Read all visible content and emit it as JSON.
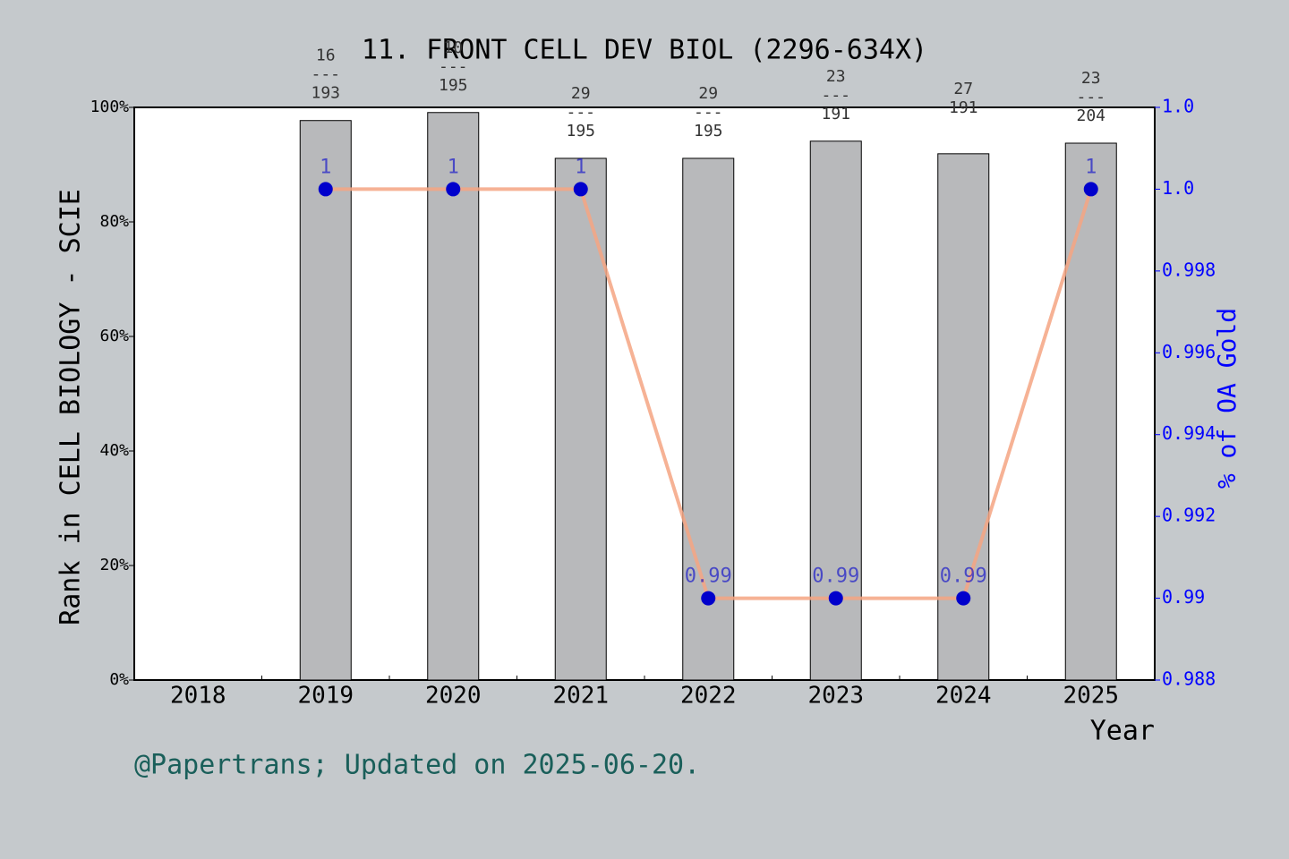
{
  "chart_data": {
    "type": "bar-line",
    "title": "11. FRONT CELL DEV BIOL (2296-634X)",
    "x_label": "Year",
    "y_label": "Rank in CELL BIOLOGY - SCIE",
    "y2_label": "% of OA Gold",
    "footer": "@Papertrans; Updated on 2025-06-20.",
    "categories": [
      "2018",
      "2019",
      "2020",
      "2021",
      "2022",
      "2023",
      "2024",
      "2025"
    ],
    "series": [
      {
        "type": "bar",
        "color": "#b8b9bb",
        "values": [
          null,
          97.7,
          99.1,
          91.1,
          91.1,
          94.1,
          91.9,
          93.75
        ],
        "value_labels": [
          null,
          "16\n---\n193",
          "10\n---\n195",
          "29\n---\n195",
          "29\n---\n195",
          "23\n---\n191",
          "27\n\n191",
          "23\n---\n204"
        ]
      },
      {
        "type": "line",
        "axis": "y2",
        "color": "#f4a582",
        "marker_color": "#0000cc",
        "values": [
          null,
          1,
          1,
          1,
          0.99,
          0.99,
          0.99,
          1
        ]
      }
    ],
    "ylim": [
      0,
      100
    ],
    "yticks": [
      {
        "value": 0,
        "label": "0%"
      },
      {
        "value": 20,
        "label": "20%"
      },
      {
        "value": 40,
        "label": "40%"
      },
      {
        "value": 60,
        "label": "60%"
      },
      {
        "value": 80,
        "label": "80%"
      },
      {
        "value": 100,
        "label": "100%"
      }
    ],
    "y2lim": [
      0.988,
      1.002
    ],
    "y2ticks": [
      0.988,
      0.99,
      0.992,
      0.994,
      0.996,
      0.998,
      {
        "value": 1,
        "label": "1.0"
      },
      {
        "value": 1.002,
        "label": "1.0"
      }
    ],
    "grid": false
  }
}
